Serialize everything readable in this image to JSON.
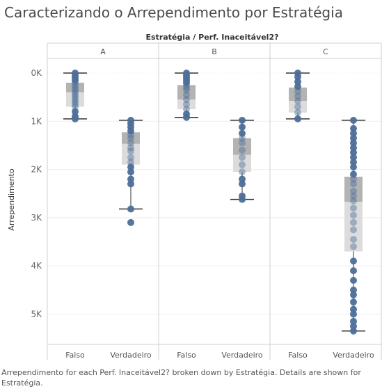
{
  "title": "Caracterizando o Arrependimento por Estratégia",
  "caption": "Arrependimento for each Perf. Inaceitável2? broken down by Estratégia.  Details are shown for Estratégia.",
  "chart_data": {
    "type": "box",
    "header": "Estratégia  /  Perf. Inaceitável2?",
    "ylabel": "Arrependimento",
    "y_axis": "reversed",
    "ylim": [
      -0.2,
      5.8
    ],
    "y_ticks": [
      0,
      1,
      2,
      3,
      4,
      5
    ],
    "y_tick_labels": [
      "0K",
      "1K",
      "2K",
      "3K",
      "4K",
      "5K"
    ],
    "y_unit": "thousands",
    "panels": [
      "A",
      "B",
      "C"
    ],
    "categories": [
      "Falso",
      "Verdadeiro"
    ],
    "colors": {
      "point": "#4e6f98",
      "box_dark": "#b3b3b3",
      "box_light": "#dcdcdc",
      "whisker": "#333333"
    },
    "boxes": [
      {
        "panel": "A",
        "category": "Falso",
        "min": 0.0,
        "q1": 0.2,
        "median": 0.4,
        "q3": 0.7,
        "max": 0.95,
        "points": [
          0.0,
          0.05,
          0.1,
          0.15,
          0.2,
          0.25,
          0.3,
          0.35,
          0.4,
          0.45,
          0.5,
          0.55,
          0.6,
          0.65,
          0.7,
          0.8,
          0.9,
          0.95
        ]
      },
      {
        "panel": "A",
        "category": "Verdadeiro",
        "min": 0.98,
        "q1": 1.23,
        "median": 1.47,
        "q3": 1.9,
        "max": 2.82,
        "points": [
          0.98,
          1.05,
          1.12,
          1.2,
          1.28,
          1.35,
          1.45,
          1.55,
          1.62,
          1.75,
          1.85,
          1.95,
          2.05,
          2.2,
          2.3,
          2.82,
          3.1
        ]
      },
      {
        "panel": "B",
        "category": "Falso",
        "min": 0.0,
        "q1": 0.25,
        "median": 0.55,
        "q3": 0.75,
        "max": 0.92,
        "points": [
          0.0,
          0.05,
          0.1,
          0.15,
          0.2,
          0.25,
          0.3,
          0.35,
          0.45,
          0.55,
          0.65,
          0.75,
          0.85,
          0.92
        ]
      },
      {
        "panel": "B",
        "category": "Verdadeiro",
        "min": 0.98,
        "q1": 1.35,
        "median": 1.7,
        "q3": 2.05,
        "max": 2.62,
        "points": [
          0.98,
          1.12,
          1.25,
          1.35,
          1.45,
          1.6,
          1.75,
          1.9,
          2.05,
          2.2,
          2.3,
          2.55,
          2.62
        ]
      },
      {
        "panel": "C",
        "category": "Falso",
        "min": 0.0,
        "q1": 0.3,
        "median": 0.58,
        "q3": 0.82,
        "max": 0.95,
        "points": [
          0.0,
          0.08,
          0.18,
          0.28,
          0.38,
          0.48,
          0.58,
          0.7,
          0.82,
          0.95
        ]
      },
      {
        "panel": "C",
        "category": "Verdadeiro",
        "min": 0.98,
        "q1": 2.15,
        "median": 2.67,
        "q3": 3.7,
        "max": 5.35,
        "points": [
          0.98,
          1.15,
          1.25,
          1.35,
          1.45,
          1.55,
          1.65,
          1.75,
          1.85,
          1.95,
          2.1,
          2.2,
          2.3,
          2.45,
          2.55,
          2.65,
          2.8,
          2.95,
          3.1,
          3.25,
          3.45,
          3.6,
          3.9,
          4.1,
          4.3,
          4.5,
          4.6,
          4.75,
          4.9,
          5.0,
          5.15,
          5.25,
          5.35
        ]
      }
    ]
  }
}
